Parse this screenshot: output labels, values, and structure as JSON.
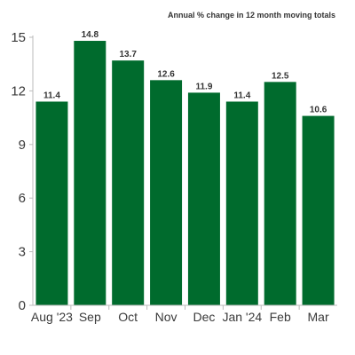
{
  "chart_data": {
    "type": "bar",
    "subtitle": "Annual % change in 12 month moving totals",
    "categories": [
      "Aug '23",
      "Sep",
      "Oct",
      "Nov",
      "Dec",
      "Jan '24",
      "Feb",
      "Mar"
    ],
    "values": [
      11.4,
      14.8,
      13.7,
      12.6,
      11.9,
      11.4,
      12.5,
      10.6
    ],
    "data_labels": [
      "11.4",
      "14.8",
      "13.7",
      "12.6",
      "11.9",
      "11.4",
      "12.5",
      "10.6"
    ],
    "ylim": [
      0,
      15
    ],
    "yticks": [
      0,
      3,
      6,
      9,
      12,
      15
    ],
    "grid": false,
    "bar_color": "#006b2d",
    "axis_color": "#bbbbbb"
  }
}
